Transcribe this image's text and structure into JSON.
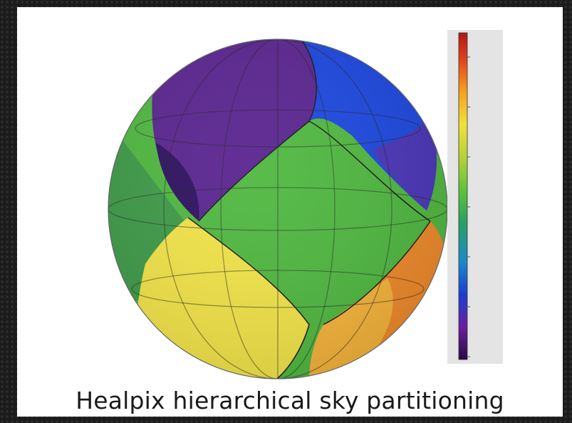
{
  "caption": "Healpix hierarchical sky partitioning",
  "colorbar": {
    "colors": [
      "#2a0a45",
      "#6a1fa0",
      "#1b3fd0",
      "#1aa0c0",
      "#2aa060",
      "#5ec43a",
      "#b6d23a",
      "#f0e23a",
      "#f5a020",
      "#e0401a",
      "#b01818"
    ]
  }
}
